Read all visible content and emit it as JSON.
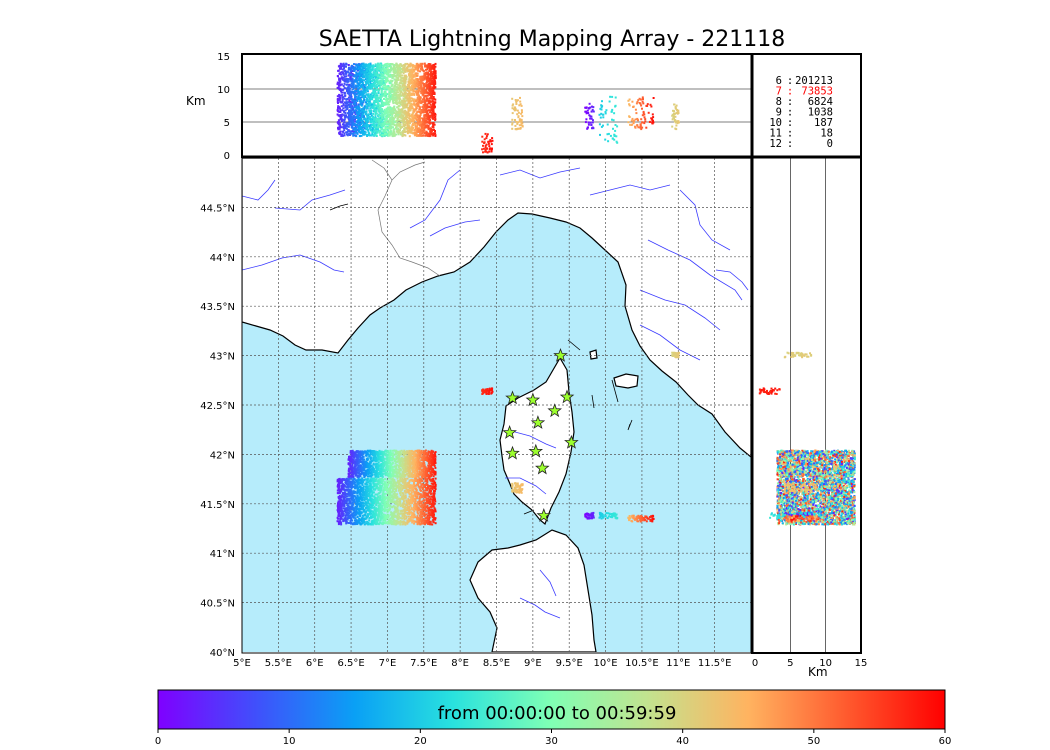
{
  "chart_data": {
    "type": "scatter",
    "title": "SAETTA Lightning Mapping Array - 221118",
    "colormap": "rainbow",
    "colors": {
      "sea": "#b6ecfb",
      "land": "#ffffff",
      "coast": "#000000",
      "rivers": "#3b3bff",
      "borders": "#777777",
      "stations": "#9cff2e",
      "stat_highlight": "#ff0000"
    },
    "map": {
      "lon_range": [
        5,
        12.0
      ],
      "lat_range": [
        40,
        45
      ],
      "lon_ticks": [
        "5°E",
        "5.5°E",
        "6°E",
        "6.5°E",
        "7°E",
        "7.5°E",
        "8°E",
        "8.5°E",
        "9°E",
        "9.5°E",
        "10°E",
        "10.5°E",
        "11°E",
        "11.5°E"
      ],
      "lat_ticks": [
        "40°N",
        "40.5°N",
        "41°N",
        "41.5°N",
        "42°N",
        "42.5°N",
        "43°N",
        "43.5°N",
        "44°N",
        "44.5°N"
      ],
      "grid": true
    },
    "top_panel": {
      "ylabel": "Km",
      "yticks": [
        "0",
        "5",
        "10",
        "15"
      ],
      "ylim": [
        0,
        15
      ]
    },
    "right_panel": {
      "xlabel": "Km",
      "xticks": [
        "0",
        "5",
        "10",
        "15"
      ],
      "xlim": [
        0,
        15
      ]
    },
    "stats": [
      {
        "n": "6",
        "count": "201213",
        "highlight": false
      },
      {
        "n": "7",
        "count": "73853",
        "highlight": true
      },
      {
        "n": "8",
        "count": "6824",
        "highlight": false
      },
      {
        "n": "9",
        "count": "1038",
        "highlight": false
      },
      {
        "n": "10",
        "count": "187",
        "highlight": false
      },
      {
        "n": "11",
        "count": "18",
        "highlight": false
      },
      {
        "n": "12",
        "count": "0",
        "highlight": false
      }
    ],
    "stations": [
      [
        9.38,
        43.0
      ],
      [
        8.72,
        42.57
      ],
      [
        9.0,
        42.55
      ],
      [
        9.47,
        42.58
      ],
      [
        9.3,
        42.44
      ],
      [
        9.07,
        42.32
      ],
      [
        8.68,
        42.22
      ],
      [
        9.53,
        42.12
      ],
      [
        8.72,
        42.01
      ],
      [
        9.04,
        42.03
      ],
      [
        9.13,
        41.86
      ],
      [
        9.15,
        41.38
      ]
    ],
    "clusters": [
      {
        "lon": [
          6.45,
          7.65
        ],
        "lat": [
          41.78,
          42.05
        ],
        "alt": [
          3,
          14
        ],
        "t": [
          3,
          58
        ],
        "n": 1500
      },
      {
        "lon": [
          6.3,
          7.65
        ],
        "lat": [
          41.3,
          41.77
        ],
        "alt": [
          3,
          14
        ],
        "t": [
          3,
          58
        ],
        "n": 2200
      },
      {
        "lon": [
          8.28,
          8.44
        ],
        "lat": [
          42.62,
          42.68
        ],
        "alt": [
          0.5,
          3.5
        ],
        "t": [
          56,
          59
        ],
        "n": 40
      },
      {
        "lon": [
          8.7,
          8.85
        ],
        "lat": [
          41.62,
          41.72
        ],
        "alt": [
          4,
          9
        ],
        "t": [
          42,
          44
        ],
        "n": 60
      },
      {
        "lon": [
          9.7,
          9.83
        ],
        "lat": [
          41.36,
          41.42
        ],
        "alt": [
          4,
          8
        ],
        "t": [
          0,
          4
        ],
        "n": 40
      },
      {
        "lon": [
          9.9,
          10.15
        ],
        "lat": [
          41.36,
          41.42
        ],
        "alt": [
          2,
          9
        ],
        "t": [
          20,
          24
        ],
        "n": 50
      },
      {
        "lon": [
          10.3,
          10.65
        ],
        "lat": [
          41.33,
          41.39
        ],
        "alt": [
          4,
          9
        ],
        "t": [
          44,
          59
        ],
        "n": 80
      },
      {
        "lon": [
          10.9,
          11.0
        ],
        "lat": [
          42.99,
          43.04
        ],
        "alt": [
          4,
          8
        ],
        "t": [
          40,
          42
        ],
        "n": 40
      }
    ],
    "colorbar": {
      "label": "from 00:00:00 to 00:59:59",
      "ticks": [
        "0",
        "10",
        "20",
        "30",
        "40",
        "50",
        "60"
      ],
      "range": [
        0,
        60
      ]
    }
  }
}
